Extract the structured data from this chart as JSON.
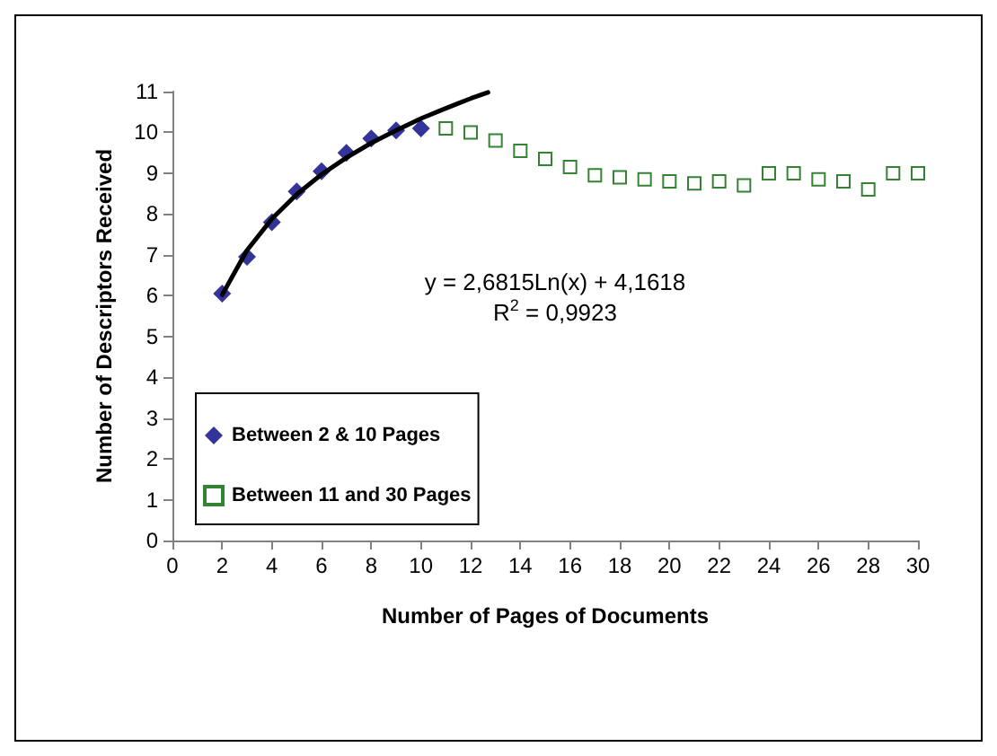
{
  "chart_data": {
    "type": "scatter",
    "xlabel": "Number of Pages of Documents",
    "ylabel": "Number of Descriptors Received",
    "xlim": [
      0,
      30
    ],
    "xticks": [
      0,
      2,
      4,
      6,
      8,
      10,
      12,
      14,
      16,
      18,
      20,
      22,
      24,
      26,
      28,
      30
    ],
    "ylim": [
      0,
      11
    ],
    "yticks": [
      0,
      1,
      2,
      3,
      4,
      5,
      6,
      7,
      8,
      9,
      10,
      11
    ],
    "grid": false,
    "legend": "bottom left",
    "annotations": [
      "y = 2,6815Ln(x) + 4,1618",
      "R$^{2}$ = 0,9923"
    ],
    "series": [
      {
        "name": "Between 2 & 10 Pages",
        "color": "#000080",
        "marker": "diamond",
        "x": [
          2,
          3,
          4,
          5,
          6,
          7,
          8,
          9,
          10
        ],
        "values": [
          6.05,
          6.95,
          7.8,
          8.55,
          9.05,
          9.5,
          9.85,
          10.05,
          10.1
        ]
      },
      {
        "name": "Between 11 and 30 Pages",
        "color": "#006400",
        "marker": "square",
        "x": [
          11,
          12,
          13,
          14,
          15,
          16,
          17,
          18,
          19,
          20,
          21,
          22,
          23,
          24,
          25,
          26,
          27,
          28,
          29,
          30
        ],
        "values": [
          10.1,
          10.0,
          9.8,
          9.55,
          9.35,
          9.15,
          8.95,
          8.9,
          8.85,
          8.8,
          8.75,
          8.8,
          8.7,
          9.0,
          9.0,
          8.85,
          8.8,
          8.6,
          9.0,
          9.0
        ]
      },
      {
        "type": "line",
        "color": "#000000",
        "marker": "none",
        "line_style": "solid",
        "x": [
          2,
          3,
          4,
          5,
          6,
          7,
          8,
          9,
          10,
          11,
          12,
          12.7
        ],
        "values": [
          6.02,
          7.11,
          7.88,
          8.48,
          8.97,
          9.38,
          9.74,
          10.05,
          10.34,
          10.59,
          10.83,
          10.98
        ]
      }
    ]
  }
}
